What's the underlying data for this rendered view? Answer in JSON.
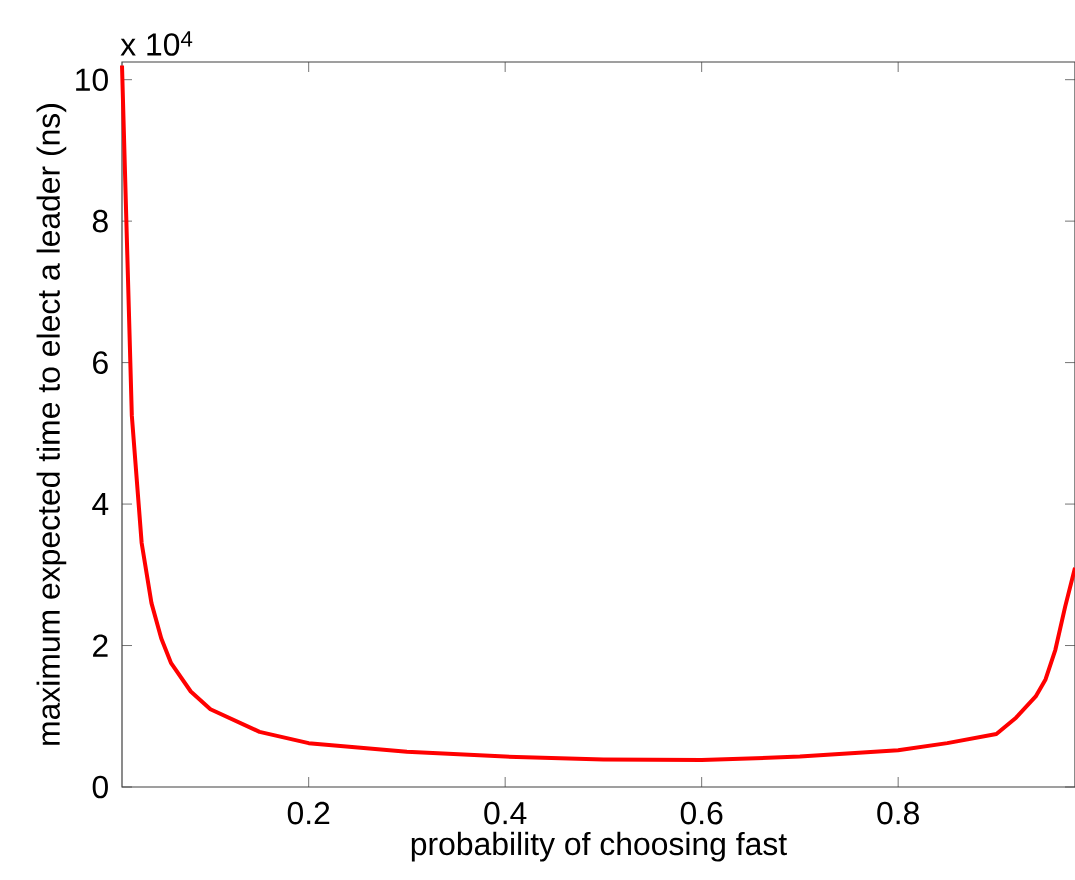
{
  "chart_data": {
    "type": "line",
    "xlabel": "probability of choosing fast",
    "ylabel": "maximum expected time to elect a leader (ns)",
    "annotations": [
      "x 10$^{4}$"
    ],
    "x": [
      0.01,
      0.02,
      0.03,
      0.04,
      0.05,
      0.06,
      0.08,
      0.1,
      0.15,
      0.2,
      0.3,
      0.4,
      0.5,
      0.6,
      0.7,
      0.8,
      0.85,
      0.9,
      0.92,
      0.94,
      0.95,
      0.96,
      0.97,
      0.98
    ],
    "values": [
      10.2,
      5.25,
      3.45,
      2.6,
      2.1,
      1.75,
      1.35,
      1.1,
      0.78,
      0.62,
      0.5,
      0.43,
      0.39,
      0.38,
      0.43,
      0.52,
      0.62,
      0.75,
      0.98,
      1.28,
      1.52,
      1.94,
      2.55,
      3.1
    ],
    "color": "#ff0000",
    "xlim": [
      0.01,
      0.98
    ],
    "ylim": [
      0,
      10.25
    ],
    "xticks": [
      0.2,
      0.4,
      0.6,
      0.8
    ],
    "yticks": [
      0,
      2,
      4,
      6,
      8,
      10
    ],
    "line_style": "solid",
    "marker": "none"
  }
}
